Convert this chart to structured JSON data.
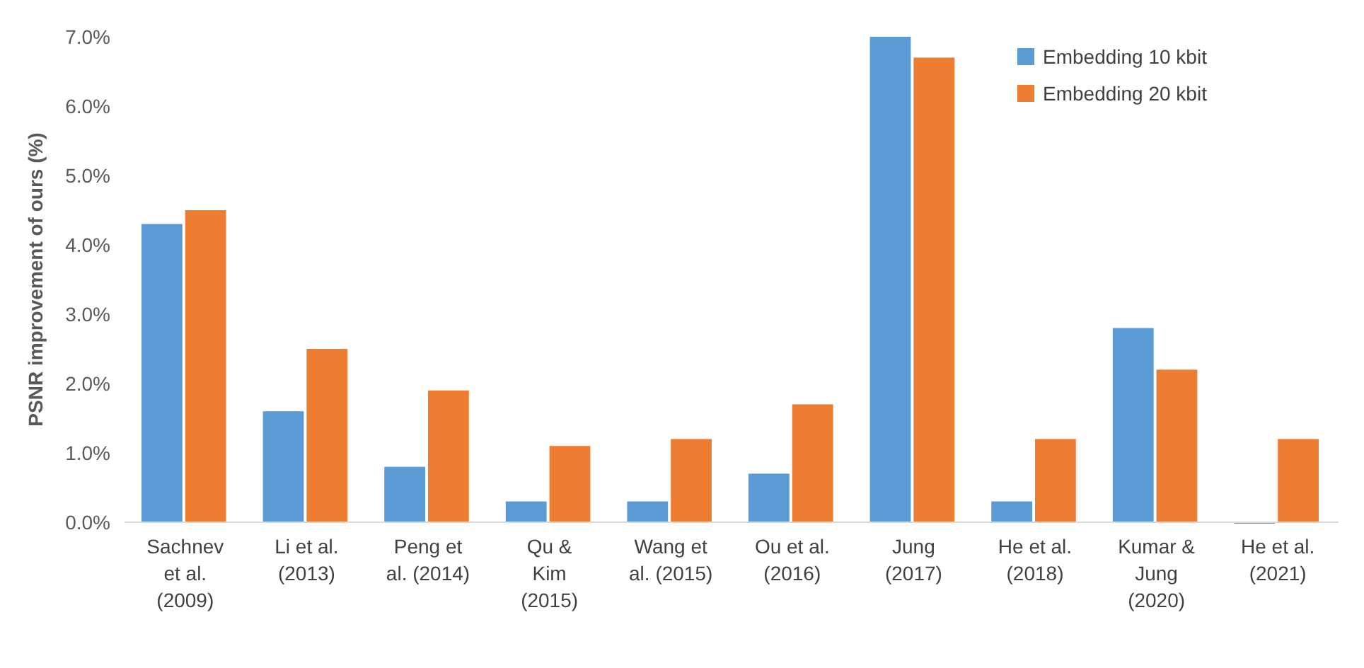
{
  "chart_data": {
    "type": "bar",
    "ylabel": "PSNR improvement of ours  (%)",
    "categories": [
      "Sachnev\net al.\n(2009)",
      "Li et al.\n(2013)",
      "Peng et\nal. (2014)",
      "Qu &\nKim\n(2015)",
      "Wang et\nal. (2015)",
      "Ou et al.\n(2016)",
      "Jung\n(2017)",
      "He et al.\n(2018)",
      "Kumar &\nJung\n(2020)",
      "He et al.\n(2021)"
    ],
    "series": [
      {
        "name": "Embedding 10 kbit",
        "color": "#5b9bd5",
        "values": [
          4.3,
          1.6,
          0.8,
          0.3,
          0.3,
          0.7,
          7.0,
          0.3,
          2.8,
          0.0
        ]
      },
      {
        "name": "Embedding 20 kbit",
        "color": "#ed7d31",
        "values": [
          4.5,
          2.5,
          1.9,
          1.1,
          1.2,
          1.7,
          6.7,
          1.2,
          2.2,
          1.2
        ]
      }
    ],
    "ylim": [
      0,
      7
    ],
    "yticks": [
      {
        "value": 0,
        "label": "0.0%"
      },
      {
        "value": 1,
        "label": "1.0%"
      },
      {
        "value": 2,
        "label": "2.0%"
      },
      {
        "value": 3,
        "label": "3.0%"
      },
      {
        "value": 4,
        "label": "4.0%"
      },
      {
        "value": 5,
        "label": "5.0%"
      },
      {
        "value": 6,
        "label": "6.0%"
      },
      {
        "value": 7,
        "label": "7.0%"
      }
    ],
    "grid": false,
    "legend": "top right"
  }
}
